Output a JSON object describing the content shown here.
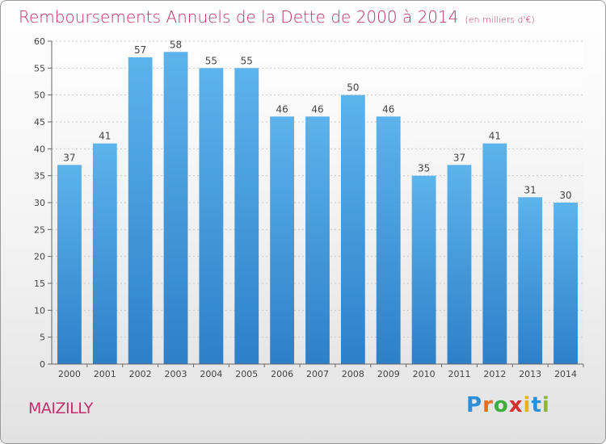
{
  "header": {
    "title": "Remboursements Annuels de la Dette de 2000 à 2014",
    "unit": "(en milliers d'€)"
  },
  "footer": {
    "place": "MAIZILLY",
    "logo_text": "Proxiti"
  },
  "colors": {
    "accent": "#c0306a",
    "bar_top": "#5db3ec",
    "bar_bottom": "#2d80c8"
  },
  "chart_data": {
    "type": "bar",
    "categories": [
      "2000",
      "2001",
      "2002",
      "2003",
      "2004",
      "2005",
      "2006",
      "2007",
      "2008",
      "2009",
      "2010",
      "2011",
      "2012",
      "2013",
      "2014"
    ],
    "values": [
      37,
      41,
      57,
      58,
      55,
      55,
      46,
      46,
      50,
      46,
      35,
      37,
      41,
      31,
      30
    ],
    "title": "Remboursements Annuels de la Dette de 2000 à 2014",
    "xlabel": "",
    "ylabel": "",
    "ylim": [
      0,
      60
    ],
    "yticks": [
      0,
      5,
      10,
      15,
      20,
      25,
      30,
      35,
      40,
      45,
      50,
      55,
      60
    ],
    "grid": true,
    "data_labels": true
  }
}
